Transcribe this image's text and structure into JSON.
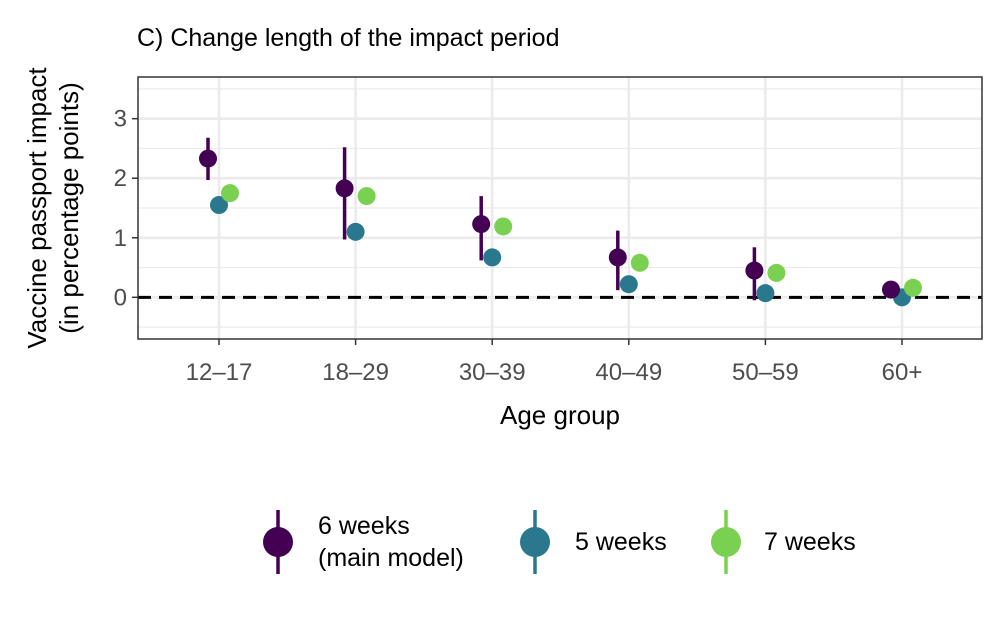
{
  "chart_data": {
    "type": "scatter",
    "title": "C) Change length of the impact period",
    "xlabel": "Age group",
    "ylabel_lines": [
      "Vaccine passport impact",
      "(in percentage points)"
    ],
    "categories": [
      "12–17",
      "18–29",
      "30–39",
      "40–49",
      "50–59",
      "60+"
    ],
    "ylim": [
      -0.7,
      3.7
    ],
    "yticks": [
      "0",
      "1",
      "2",
      "3"
    ],
    "grid": true,
    "reference_line": {
      "y": 0,
      "style": "dashed"
    },
    "legend_position": "bottom",
    "series": [
      {
        "legend_lines": [
          "6 weeks",
          "(main model)"
        ],
        "color": "#440154",
        "values": [
          2.33,
          1.83,
          1.23,
          0.67,
          0.45,
          0.13
        ],
        "ci_low": [
          1.97,
          0.97,
          0.62,
          0.12,
          -0.05,
          null
        ],
        "ci_high": [
          2.68,
          2.52,
          1.7,
          1.12,
          0.84,
          null
        ]
      },
      {
        "legend_lines": [
          "5 weeks"
        ],
        "color": "#2a788e",
        "values": [
          1.55,
          1.1,
          0.67,
          0.22,
          0.07,
          0.0
        ],
        "ci_low": [
          null,
          null,
          null,
          null,
          null,
          null
        ],
        "ci_high": [
          null,
          null,
          null,
          null,
          null,
          null
        ]
      },
      {
        "legend_lines": [
          "7 weeks"
        ],
        "color": "#7ad151",
        "values": [
          1.75,
          1.7,
          1.19,
          0.58,
          0.41,
          0.16
        ],
        "ci_low": [
          null,
          null,
          null,
          null,
          null,
          null
        ],
        "ci_high": [
          null,
          null,
          null,
          null,
          null,
          null
        ]
      }
    ]
  }
}
